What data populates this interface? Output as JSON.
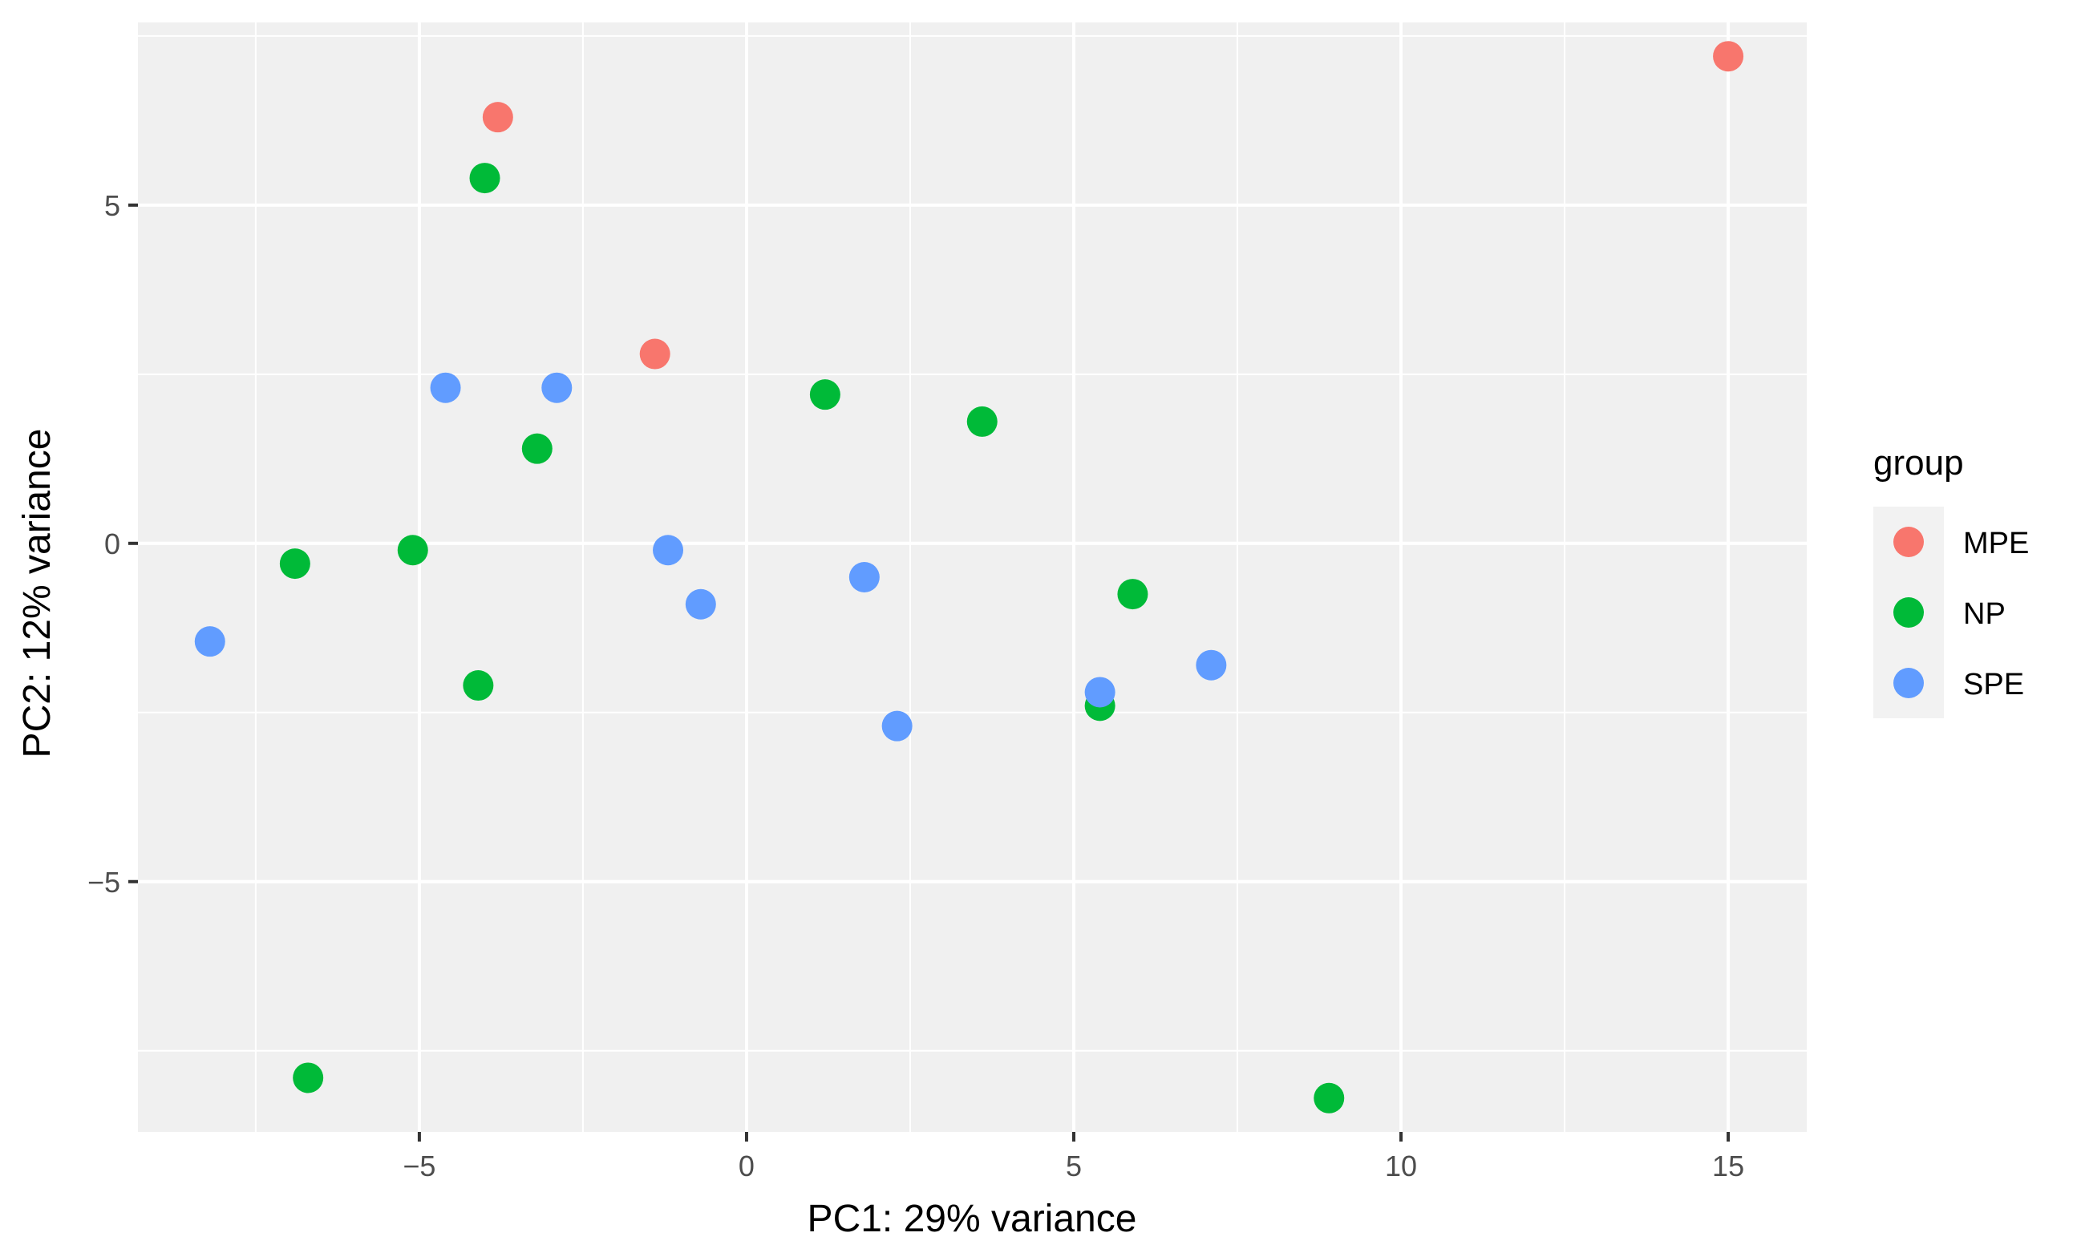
{
  "chart_data": {
    "type": "scatter",
    "title": "",
    "xlabel": "PC1: 29% variance",
    "ylabel": "PC2: 12% variance",
    "xlim": [
      -9.3,
      16.2
    ],
    "ylim": [
      -8.7,
      7.7
    ],
    "x_ticks": [
      -5,
      0,
      5,
      10,
      15
    ],
    "y_ticks": [
      -5,
      0,
      5
    ],
    "x_tick_labels": [
      "−5",
      "0",
      "5",
      "10",
      "15"
    ],
    "y_tick_labels": [
      "−5",
      "0",
      "5"
    ],
    "grid": true,
    "legend": {
      "title": "group",
      "position": "right"
    },
    "series": [
      {
        "name": "MPE",
        "color": "#F8766D",
        "points": [
          {
            "x": -3.8,
            "y": 6.3
          },
          {
            "x": -1.4,
            "y": 2.8
          },
          {
            "x": 15.0,
            "y": 7.2
          }
        ]
      },
      {
        "name": "NP",
        "color": "#00BA38",
        "points": [
          {
            "x": -4.0,
            "y": 5.4
          },
          {
            "x": 1.2,
            "y": 2.2
          },
          {
            "x": 3.6,
            "y": 1.8
          },
          {
            "x": -3.2,
            "y": 1.4
          },
          {
            "x": -6.9,
            "y": -0.3
          },
          {
            "x": -5.1,
            "y": -0.1
          },
          {
            "x": 5.9,
            "y": -0.75
          },
          {
            "x": -4.1,
            "y": -2.1
          },
          {
            "x": 5.4,
            "y": -2.4
          },
          {
            "x": -6.7,
            "y": -7.9
          },
          {
            "x": 8.9,
            "y": -8.2
          }
        ]
      },
      {
        "name": "SPE",
        "color": "#619CFF",
        "points": [
          {
            "x": -4.6,
            "y": 2.3
          },
          {
            "x": -2.9,
            "y": 2.3
          },
          {
            "x": -1.2,
            "y": -0.1
          },
          {
            "x": 1.8,
            "y": -0.5
          },
          {
            "x": -0.7,
            "y": -0.9
          },
          {
            "x": -8.2,
            "y": -1.45
          },
          {
            "x": 7.1,
            "y": -1.8
          },
          {
            "x": 5.4,
            "y": -2.2
          },
          {
            "x": 2.3,
            "y": -2.7
          }
        ]
      }
    ]
  }
}
